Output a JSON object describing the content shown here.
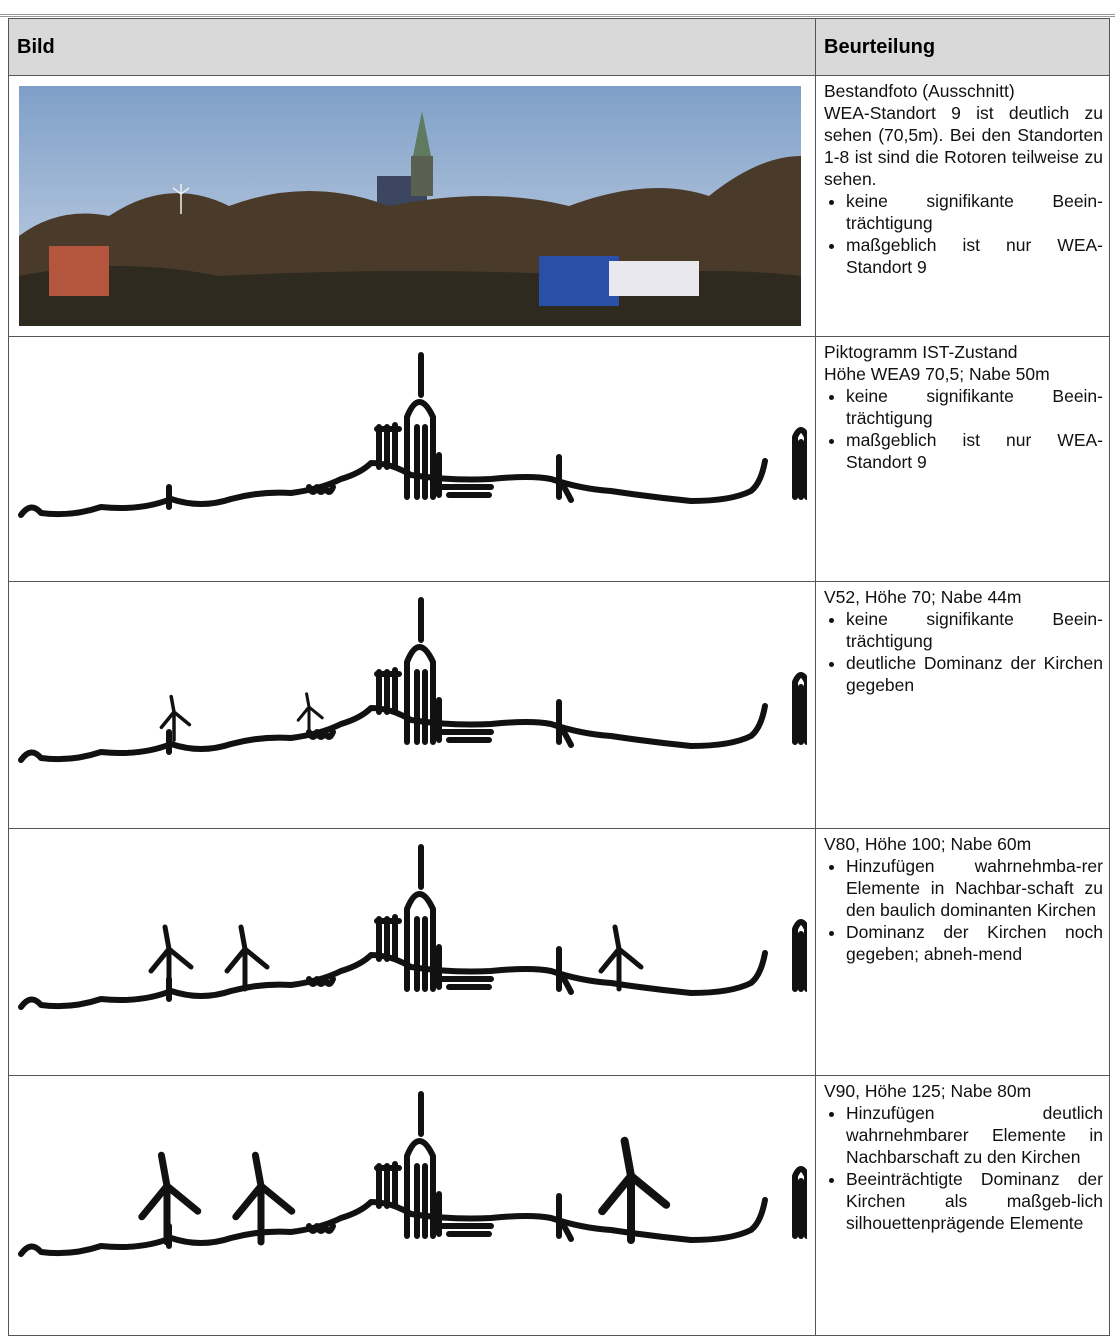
{
  "header": {
    "columns": [
      "Bild",
      "Beurteilung"
    ]
  },
  "rows": [
    {
      "title": "Bestandfoto (Ausschnitt)",
      "text": "WEA-Standort 9 ist deutlich zu sehen (70,5m). Bei den Standorten 1-8 ist sind die Rotoren teilweise zu sehen.",
      "bullets": [
        "keine signifikante Beein-trächtigung",
        "maßgeblich ist nur WEA-Standort 9"
      ]
    },
    {
      "title": "Piktogramm IST-Zustand",
      "text": "Höhe WEA9 70,5; Nabe 50m",
      "bullets": [
        "keine signifikante Beein-trächtigung",
        "maßgeblich ist nur WEA-Standort 9"
      ]
    },
    {
      "title": "V52, Höhe 70; Nabe 44m",
      "bullets": [
        "keine signifikante Beein-trächtigung",
        "deutliche Dominanz der Kirchen gegeben"
      ]
    },
    {
      "title": "V80, Höhe 100; Nabe 60m",
      "bullets": [
        "Hinzufügen wahrnehmba-rer Elemente in Nachbar-schaft zu den baulich dominanten Kirchen",
        "Dominanz der Kirchen noch gegeben; abneh-mend"
      ]
    },
    {
      "title": "V90, Höhe 125; Nabe 80m",
      "bullets": [
        "Hinzufügen deutlich wahrnehmbarer Elemente in Nachbarschaft zu den Kirchen",
        "Beeinträchtigte Dominanz der Kirchen als maßgeb-lich silhouettenprägende Elemente"
      ]
    }
  ]
}
